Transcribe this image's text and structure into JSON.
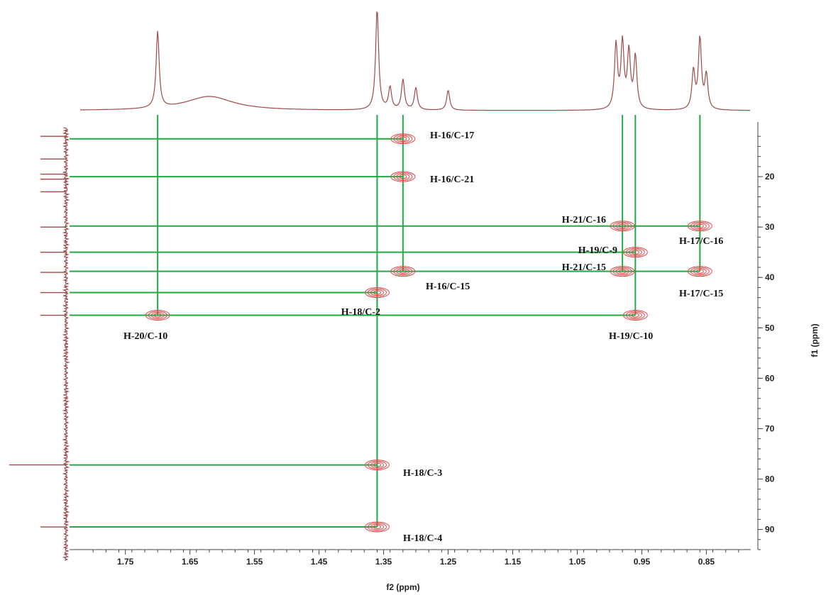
{
  "chart_data": {
    "type": "scatter",
    "subtype": "2D NMR HMBC spectrum",
    "title": "",
    "xlabel": "f2 (ppm)",
    "ylabel": "f1 (ppm)",
    "x_axis_direction": "reversed",
    "y_axis_direction": "increasing downward",
    "xlim": [
      1.82,
      0.79
    ],
    "ylim": [
      10,
      94
    ],
    "x_ticks": [
      "1.75",
      "1.65",
      "1.55",
      "1.45",
      "1.35",
      "1.25",
      "1.15",
      "1.05",
      "0.95",
      "0.85"
    ],
    "y_ticks": [
      "20",
      "30",
      "40",
      "50",
      "60",
      "70",
      "80",
      "90"
    ],
    "grid": false,
    "colors": {
      "projection": "#a04a4a",
      "correlation_line": "#22aa44",
      "contour": "#e24a4a",
      "axis": "#444444"
    },
    "projection_f2_peaks": [
      {
        "ppm": 1.7,
        "intensity": 0.76
      },
      {
        "ppm": 1.62,
        "intensity": 0.14
      },
      {
        "ppm": 1.36,
        "intensity": 1.0
      },
      {
        "ppm": 1.34,
        "intensity": 0.22
      },
      {
        "ppm": 1.32,
        "intensity": 0.3
      },
      {
        "ppm": 1.3,
        "intensity": 0.22
      },
      {
        "ppm": 1.25,
        "intensity": 0.2
      },
      {
        "ppm": 0.99,
        "intensity": 0.64
      },
      {
        "ppm": 0.98,
        "intensity": 0.65
      },
      {
        "ppm": 0.97,
        "intensity": 0.56
      },
      {
        "ppm": 0.96,
        "intensity": 0.52
      },
      {
        "ppm": 0.87,
        "intensity": 0.38
      },
      {
        "ppm": 0.86,
        "intensity": 0.7
      },
      {
        "ppm": 0.85,
        "intensity": 0.34
      }
    ],
    "projection_f1_peaks": [
      {
        "ppm": 12.0
      },
      {
        "ppm": 16.5
      },
      {
        "ppm": 19.5
      },
      {
        "ppm": 20.5
      },
      {
        "ppm": 23.0
      },
      {
        "ppm": 30.0
      },
      {
        "ppm": 35.0
      },
      {
        "ppm": 39.0
      },
      {
        "ppm": 43.0
      },
      {
        "ppm": 47.5
      },
      {
        "ppm": 77.2
      },
      {
        "ppm": 89.5
      }
    ],
    "correlations": [
      {
        "label": "H-16/C-17",
        "h": 1.32,
        "c": 12.5
      },
      {
        "label": "H-16/C-21",
        "h": 1.32,
        "c": 20.0
      },
      {
        "label": "H-21/C-16",
        "h": 0.98,
        "c": 29.8
      },
      {
        "label": "H-17/C-16",
        "h": 0.86,
        "c": 29.8
      },
      {
        "label": "H-19/C-9",
        "h": 0.96,
        "c": 35.0
      },
      {
        "label": "H-21/C-15",
        "h": 0.98,
        "c": 38.8
      },
      {
        "label": "H-16/C-15",
        "h": 1.32,
        "c": 38.8
      },
      {
        "label": "H-17/C-15",
        "h": 0.86,
        "c": 38.8
      },
      {
        "label": "H-18/C-2",
        "h": 1.36,
        "c": 43.0
      },
      {
        "label": "H-20/C-10",
        "h": 1.7,
        "c": 47.5
      },
      {
        "label": "H-19/C-10",
        "h": 0.96,
        "c": 47.5
      },
      {
        "label": "H-18/C-3",
        "h": 1.36,
        "c": 77.2
      },
      {
        "label": "H-18/C-4",
        "h": 1.36,
        "c": 89.5
      }
    ],
    "vertical_lines_h": [
      1.7,
      1.36,
      1.32,
      0.98,
      0.96,
      0.86
    ]
  }
}
